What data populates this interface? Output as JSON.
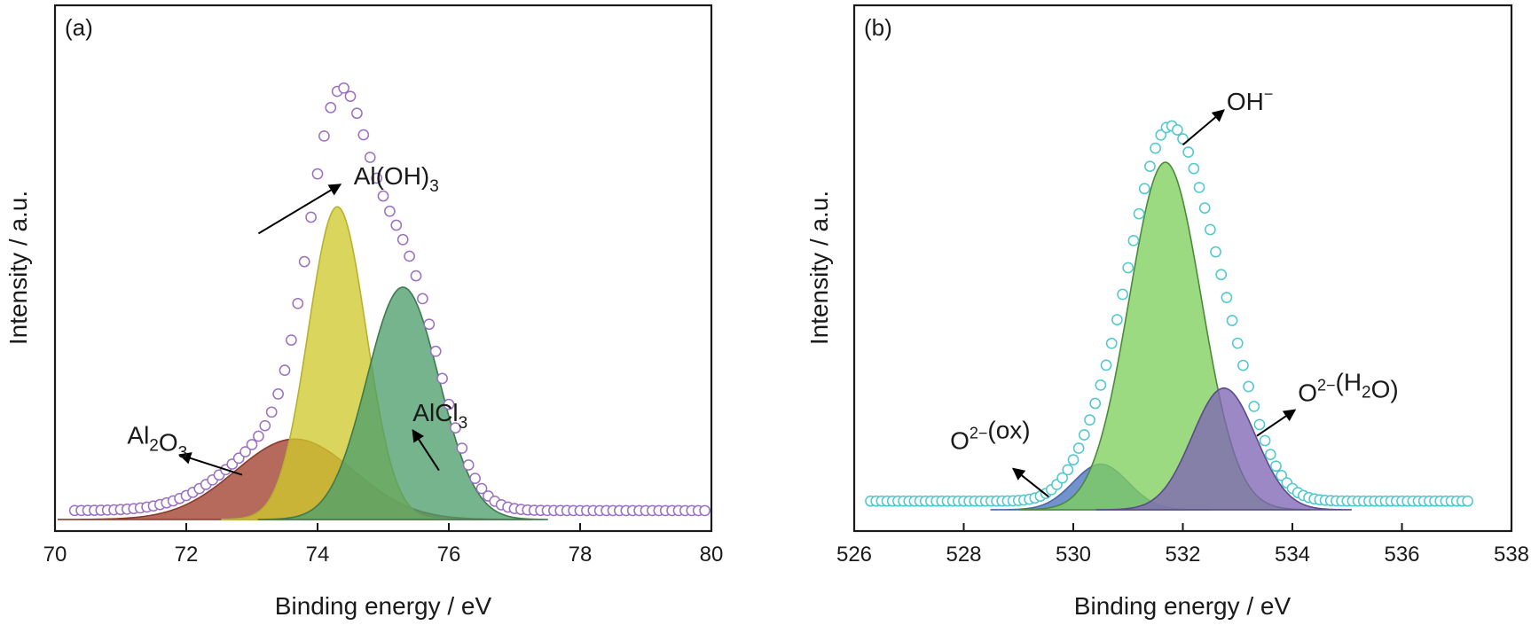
{
  "chart_data": [
    {
      "type": "line",
      "panel_label": "(a)",
      "xlabel": "Binding energy / eV",
      "ylabel": "Intensity / a.u.",
      "xlim": [
        70,
        80
      ],
      "xticks": [
        70,
        72,
        74,
        76,
        78,
        80
      ],
      "y_ticks_shown": false,
      "envelope": {
        "marker": "open-circle",
        "color": "#9b6fc3",
        "x_range": [
          70.3,
          79.9
        ],
        "step": 0.1,
        "baseline": 0.02,
        "peak_x": 74.45,
        "peak_y": 1.0
      },
      "components": [
        {
          "label": "Al2O3",
          "center": 73.65,
          "height": 0.18,
          "sigma": 0.9,
          "fill": "#a0402e",
          "stroke": "#8a3a2c"
        },
        {
          "label": "Al(OH)3",
          "center": 74.3,
          "height": 0.7,
          "sigma": 0.44,
          "fill": "#cfc92e",
          "stroke": "#b7b22c"
        },
        {
          "label": "AlCl3",
          "center": 75.3,
          "height": 0.52,
          "sigma": 0.55,
          "fill": "#4e9f6c",
          "stroke": "#3f7a4f"
        }
      ],
      "annotations": [
        {
          "id": "alooh3",
          "parts": [
            [
              "Al(OH)",
              "n"
            ],
            [
              "3",
              "sub"
            ]
          ],
          "text_at": [
            74.55,
            0.75
          ],
          "arrow_from": [
            73.1,
            0.64
          ],
          "arrow_to": [
            74.35,
            0.75
          ]
        },
        {
          "id": "alcl3",
          "parts": [
            [
              "AlCl",
              "n"
            ],
            [
              "3",
              "sub"
            ]
          ],
          "text_at": [
            75.45,
            0.22
          ],
          "arrow_from": [
            75.85,
            0.11
          ],
          "arrow_to": [
            75.45,
            0.2
          ]
        },
        {
          "id": "al2o3",
          "parts": [
            [
              "Al",
              "n"
            ],
            [
              "2",
              "sub"
            ],
            [
              "O",
              "n"
            ],
            [
              "3",
              "sub"
            ]
          ],
          "text_at": [
            71.1,
            0.17
          ],
          "arrow_from": [
            72.85,
            0.1
          ],
          "arrow_to": [
            71.9,
            0.145
          ]
        }
      ]
    },
    {
      "type": "line",
      "panel_label": "(b)",
      "xlabel": "Binding energy / eV",
      "ylabel": "Intensity / a.u.",
      "xlim": [
        526,
        538
      ],
      "xticks": [
        526,
        528,
        530,
        532,
        534,
        536,
        538
      ],
      "y_ticks_shown": false,
      "envelope": {
        "marker": "open-circle",
        "color": "#4dc8cf",
        "x_range": [
          526.3,
          537.2
        ],
        "step": 0.1,
        "baseline": 0.02,
        "peak_x": 531.8,
        "peak_y": 1.0
      },
      "components": [
        {
          "label": "O2-(ox)",
          "center": 530.5,
          "height": 0.105,
          "sigma": 0.5,
          "fill": "#4a73bf",
          "stroke": "#4866a8"
        },
        {
          "label": "OH-",
          "center": 531.68,
          "height": 0.8,
          "sigma": 0.66,
          "fill": "#7fd05d",
          "stroke": "#4a8a3a"
        },
        {
          "label": "O2-(H2O)",
          "center": 532.75,
          "height": 0.28,
          "sigma": 0.58,
          "fill": "#7f66b3",
          "stroke": "#5c4a8a"
        }
      ],
      "annotations": [
        {
          "id": "oh",
          "parts": [
            [
              "OH",
              "n"
            ],
            [
              "−",
              "sup"
            ]
          ],
          "text_at": [
            532.8,
            0.92
          ],
          "arrow_from": [
            532.0,
            0.84
          ],
          "arrow_to": [
            532.75,
            0.92
          ]
        },
        {
          "id": "o2h2o",
          "parts": [
            [
              "O",
              "n"
            ],
            [
              "2−",
              "sup"
            ],
            [
              "(H",
              "n"
            ],
            [
              "2",
              "sub"
            ],
            [
              "O)",
              "n"
            ]
          ],
          "text_at": [
            534.1,
            0.25
          ],
          "arrow_from": [
            533.35,
            0.17
          ],
          "arrow_to": [
            534.05,
            0.23
          ]
        },
        {
          "id": "o2ox",
          "parts": [
            [
              "O",
              "n"
            ],
            [
              "2−",
              "sup"
            ],
            [
              "(ox)",
              "n"
            ]
          ],
          "text_at": [
            527.75,
            0.14
          ],
          "arrow_from": [
            529.55,
            0.03
          ],
          "arrow_to": [
            528.9,
            0.095
          ]
        }
      ]
    }
  ]
}
